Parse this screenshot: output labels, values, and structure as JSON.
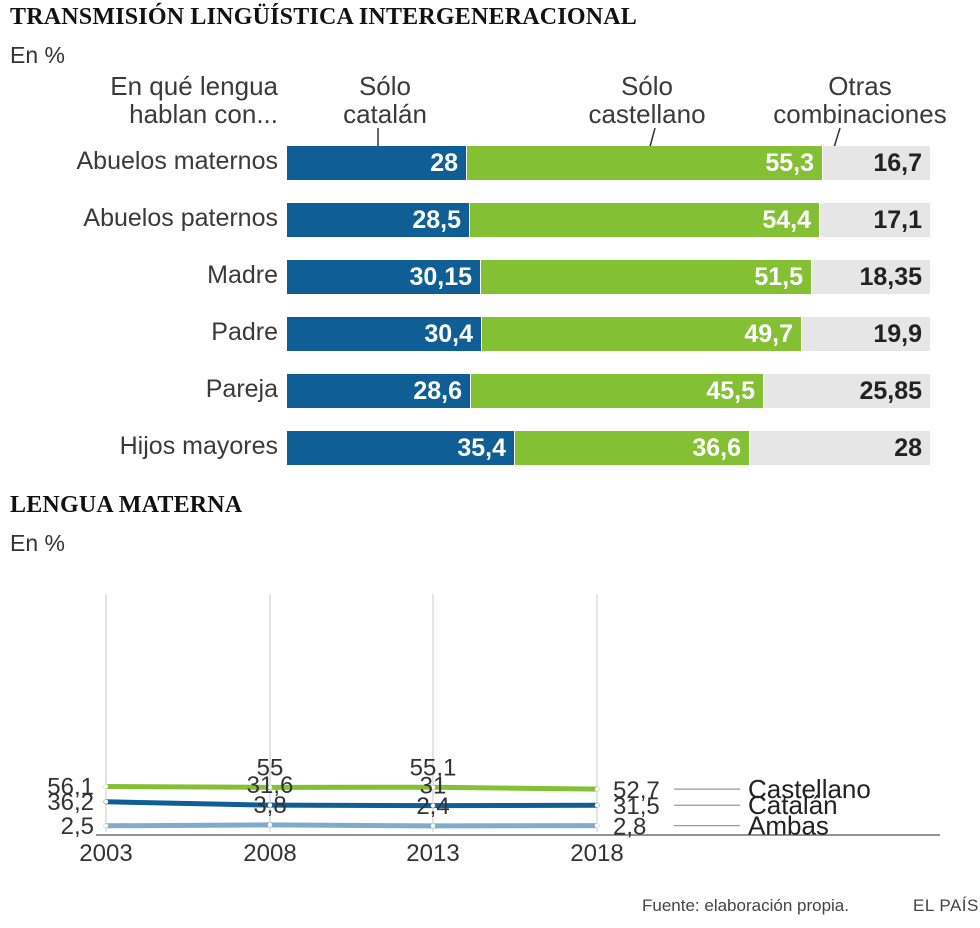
{
  "colors": {
    "catalan": "#0f5e96",
    "castellano": "#84c034",
    "otras": "#e6e6e6",
    "ambas": "#7fabcd",
    "grid": "#dcdcdc"
  },
  "section1": {
    "title": "TRANSMISIÓN LINGÜÍSTICA INTERGENERACIONAL",
    "unit": "En %",
    "row_header": [
      "En qué lengua",
      "hablan con..."
    ],
    "col_headers": {
      "catalan": [
        "Sólo",
        "catalán"
      ],
      "castellano": [
        "Sólo",
        "castellano"
      ],
      "otras": [
        "Otras",
        "combinaciones"
      ]
    }
  },
  "section2": {
    "title": "LENGUA MATERNA",
    "unit": "En %"
  },
  "chart_data": [
    {
      "type": "bar",
      "stacked": true,
      "orientation": "horizontal",
      "title": "TRANSMISIÓN LINGÜÍSTICA INTERGENERACIONAL",
      "ylabel": "En qué lengua hablan con...",
      "unit": "En %",
      "categories": [
        "Abuelos maternos",
        "Abuelos paternos",
        "Madre",
        "Padre",
        "Pareja",
        "Hijos mayores"
      ],
      "series": [
        {
          "name": "Sólo catalán",
          "values": [
            28,
            28.5,
            30.15,
            30.4,
            28.6,
            35.4
          ],
          "labels": [
            "28",
            "28,5",
            "30,15",
            "30,4",
            "28,6",
            "35,4"
          ]
        },
        {
          "name": "Sólo castellano",
          "values": [
            55.3,
            54.4,
            51.5,
            49.7,
            45.5,
            36.6
          ],
          "labels": [
            "55,3",
            "54,4",
            "51,5",
            "49,7",
            "45,5",
            "36,6"
          ]
        },
        {
          "name": "Otras combinaciones",
          "values": [
            16.7,
            17.1,
            18.35,
            19.9,
            25.85,
            28
          ],
          "labels": [
            "16,7",
            "17,1",
            "18,35",
            "19,9",
            "25,85",
            "28"
          ]
        }
      ],
      "xlim": [
        0,
        100
      ]
    },
    {
      "type": "line",
      "title": "LENGUA MATERNA",
      "unit": "En %",
      "x": [
        "2003",
        "2008",
        "2013",
        "2018"
      ],
      "series": [
        {
          "name": "Castellano",
          "values": [
            56.1,
            55,
            55.1,
            52.7
          ],
          "labels": [
            "56,1",
            "55",
            "55,1",
            "52,7"
          ]
        },
        {
          "name": "Catalán",
          "values": [
            36.2,
            31.6,
            31,
            31.5
          ],
          "labels": [
            "36,2",
            "31,6",
            "31",
            "31,5"
          ]
        },
        {
          "name": "Ambas",
          "values": [
            2.5,
            3.8,
            2.4,
            2.8
          ],
          "labels": [
            "2,5",
            "3,8",
            "2,4",
            "2,8"
          ]
        }
      ]
    }
  ],
  "footer": {
    "source": "Fuente: elaboración propia.",
    "brand": "EL PAÍS"
  }
}
